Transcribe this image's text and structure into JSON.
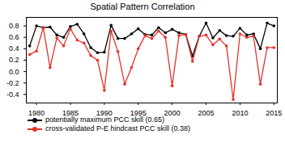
{
  "chart_data": {
    "type": "line",
    "title": "Spatial Pattern Correlation",
    "x": [
      1979,
      1980,
      1981,
      1982,
      1983,
      1984,
      1985,
      1986,
      1987,
      1988,
      1989,
      1990,
      1991,
      1992,
      1993,
      1994,
      1995,
      1996,
      1997,
      1998,
      1999,
      2000,
      2001,
      2002,
      2003,
      2004,
      2005,
      2006,
      2007,
      2008,
      2009,
      2010,
      2011,
      2012,
      2013,
      2014,
      2015
    ],
    "series": [
      {
        "name": "potentially maximum PCC skill (0.65)",
        "color": "#000000",
        "marker": "circle",
        "values": [
          0.45,
          0.8,
          0.77,
          0.78,
          0.64,
          0.6,
          0.79,
          0.83,
          0.66,
          0.42,
          0.33,
          0.34,
          0.81,
          0.58,
          0.58,
          0.66,
          0.75,
          0.65,
          0.64,
          0.77,
          0.68,
          0.74,
          0.68,
          0.65,
          0.27,
          0.62,
          0.85,
          0.59,
          0.72,
          0.63,
          0.62,
          0.76,
          0.64,
          0.66,
          0.4,
          0.85,
          0.8
        ]
      },
      {
        "name": "cross-validated P-E hindcast PCC skill (0.38)",
        "color": "#e8302a",
        "marker": "circle",
        "values": [
          0.3,
          0.36,
          0.77,
          0.07,
          0.59,
          0.45,
          0.75,
          0.55,
          0.5,
          0.28,
          0.2,
          -0.33,
          0.71,
          0.35,
          -0.22,
          0.07,
          0.4,
          0.63,
          0.58,
          0.71,
          0.6,
          -0.25,
          0.63,
          0.65,
          0.18,
          0.62,
          0.64,
          0.47,
          0.57,
          0.45,
          -0.49,
          0.66,
          0.6,
          0.62,
          -0.22,
          0.42,
          0.42
        ]
      }
    ],
    "xlim": [
      1978.5,
      2015.5
    ],
    "xticks": [
      1980,
      1985,
      1990,
      1995,
      2000,
      2005,
      2010,
      2015
    ],
    "ylim": [
      -0.55,
      0.95
    ],
    "yticks": [
      -0.4,
      -0.2,
      {
        "value": 0,
        "label": "0.0"
      },
      0.2,
      0.4,
      0.6,
      0.8
    ],
    "grid": false,
    "legend": "bottom"
  }
}
